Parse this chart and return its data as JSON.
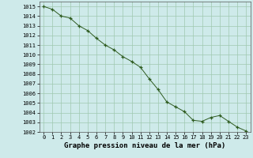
{
  "x": [
    0,
    1,
    2,
    3,
    4,
    5,
    6,
    7,
    8,
    9,
    10,
    11,
    12,
    13,
    14,
    15,
    16,
    17,
    18,
    19,
    20,
    21,
    22,
    23
  ],
  "y": [
    1015.0,
    1014.7,
    1014.0,
    1013.8,
    1013.0,
    1012.5,
    1011.7,
    1011.0,
    1010.5,
    1009.8,
    1009.3,
    1008.7,
    1007.5,
    1006.4,
    1005.1,
    1004.6,
    1004.1,
    1003.2,
    1003.1,
    1003.5,
    1003.7,
    1003.1,
    1002.5,
    1002.1
  ],
  "xlabel": "Graphe pression niveau de la mer (hPa)",
  "ylim": [
    1002,
    1015.5
  ],
  "xlim": [
    -0.5,
    23.5
  ],
  "yticks": [
    1002,
    1003,
    1004,
    1005,
    1006,
    1007,
    1008,
    1009,
    1010,
    1011,
    1012,
    1013,
    1014,
    1015
  ],
  "xticks": [
    0,
    1,
    2,
    3,
    4,
    5,
    6,
    7,
    8,
    9,
    10,
    11,
    12,
    13,
    14,
    15,
    16,
    17,
    18,
    19,
    20,
    21,
    22,
    23
  ],
  "line_color": "#2d5a1e",
  "marker_color": "#2d5a1e",
  "bg_color": "#ceeaea",
  "grid_color": "#9fc8b0",
  "label_color": "#000000",
  "xlabel_fontsize": 6.5,
  "tick_fontsize": 5.0
}
